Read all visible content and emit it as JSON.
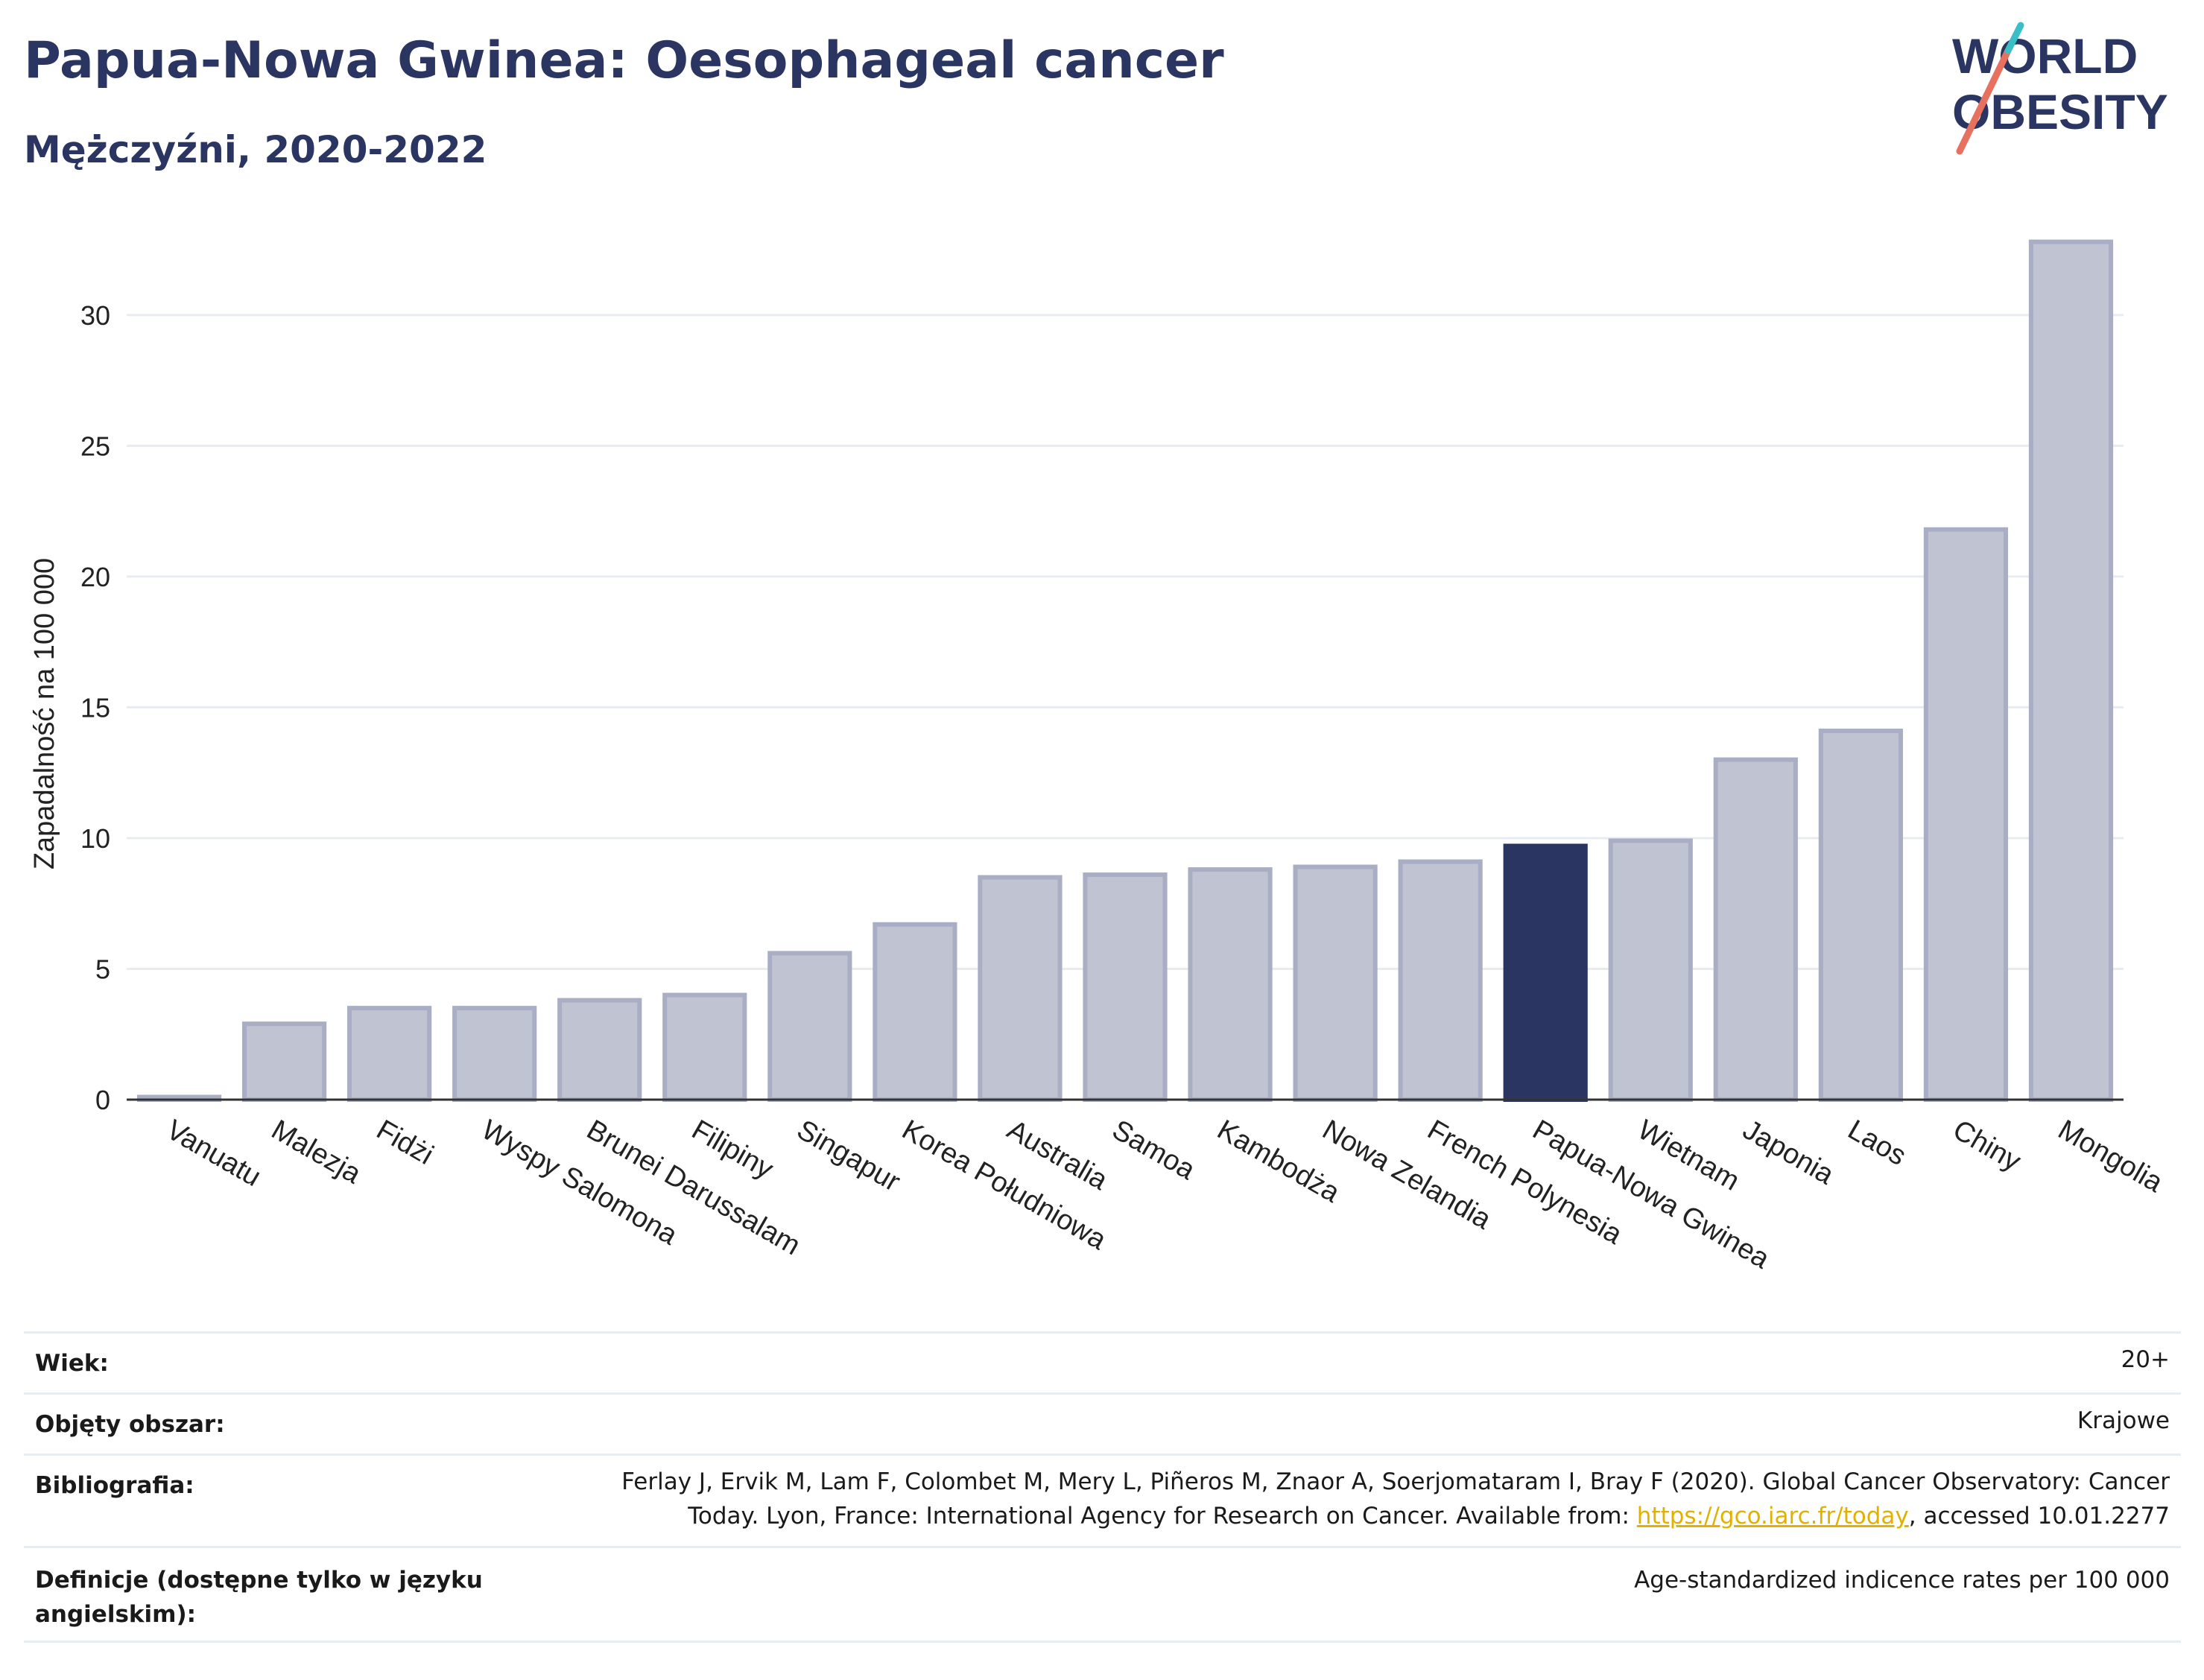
{
  "header": {
    "title": "Papua-Nowa Gwinea: Oesophageal cancer",
    "subtitle": "Mężczyźni, 2020-2022"
  },
  "logo": {
    "line1": "WORLD",
    "line2": "OBESITY"
  },
  "chart_data": {
    "type": "bar",
    "ylabel": "Zapadalność na 100 000",
    "ylim": [
      0,
      33.5
    ],
    "yticks": [
      0,
      5,
      10,
      15,
      20,
      25,
      30
    ],
    "grid": true,
    "highlight_color": "#2b3562",
    "bar_color": "#c0c3d1",
    "categories": [
      "Vanuatu",
      "Malezja",
      "Fidżi",
      "Wyspy Salomona",
      "Brunei Darussalam",
      "Filipiny",
      "Singapur",
      "Korea Południowa",
      "Australia",
      "Samoa",
      "Kambodża",
      "Nowa Zelandia",
      "French Polynesia",
      "Papua-Nowa Gwinea",
      "Wietnam",
      "Japonia",
      "Laos",
      "Chiny",
      "Mongolia"
    ],
    "values": [
      0.1,
      2.9,
      3.5,
      3.5,
      3.8,
      4.0,
      5.6,
      6.7,
      8.5,
      8.6,
      8.8,
      8.9,
      9.1,
      9.7,
      9.9,
      13.0,
      14.1,
      21.8,
      32.8
    ],
    "highlight": "Papua-Nowa Gwinea"
  },
  "meta": {
    "rows": [
      {
        "label": "Wiek:",
        "value": "20+"
      },
      {
        "label": "Objęty obszar:",
        "value": "Krajowe"
      },
      {
        "label": "Bibliografia:",
        "value_line1": "Ferlay J, Ervik M, Lam F, Colombet M, Mery L, Piñeros M, Znaor A, Soerjomataram I, Bray F (2020). Global Cancer Observatory: Cancer",
        "value_line2_pre": "Today. Lyon, France: International Agency for Research on Cancer. Available from: ",
        "link": "https://gco.iarc.fr/today",
        "value_line2_post": ", accessed 10.01.2277"
      },
      {
        "label_line1": "Definicje (dostępne tylko w języku",
        "label_line2": "angielskim):",
        "value": "Age-standardized indicence rates per 100 000"
      }
    ]
  }
}
